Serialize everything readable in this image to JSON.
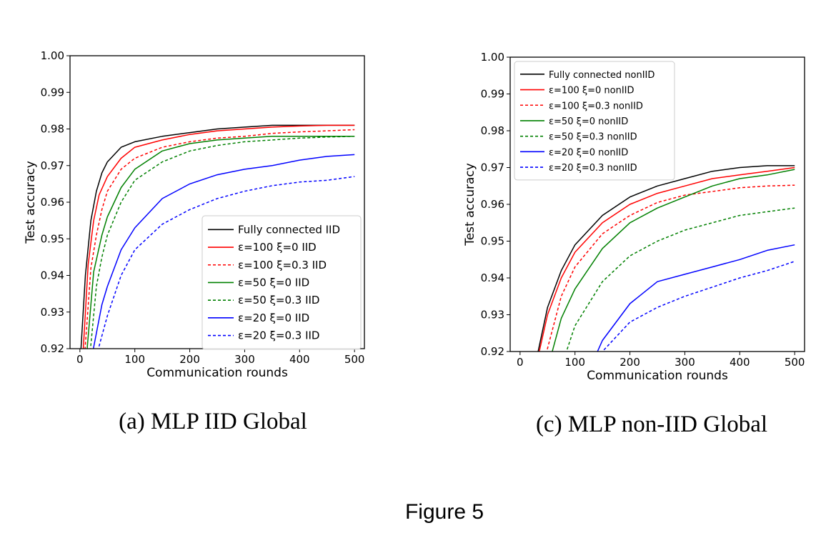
{
  "figure_label": "Figure 5",
  "chart_data": [
    {
      "type": "line",
      "caption": "(a) MLP IID Global",
      "xlabel": "Communication rounds",
      "ylabel": "Test accuracy",
      "xlim": [
        -18,
        518
      ],
      "ylim": [
        0.92,
        1.0
      ],
      "xticks": [
        0,
        100,
        200,
        300,
        400,
        500
      ],
      "yticks": [
        "0.92",
        "0.93",
        "0.94",
        "0.95",
        "0.96",
        "0.97",
        "0.98",
        "0.99",
        "1.00"
      ],
      "legend_position": "lower-right",
      "grid": false,
      "series": [
        {
          "name": "Fully connected IID",
          "color": "#000000",
          "dash": "solid",
          "x": [
            0,
            10,
            20,
            30,
            40,
            50,
            75,
            100,
            150,
            200,
            250,
            300,
            350,
            400,
            450,
            500
          ],
          "y": [
            0.915,
            0.94,
            0.955,
            0.963,
            0.968,
            0.971,
            0.975,
            0.9765,
            0.978,
            0.979,
            0.98,
            0.9805,
            0.981,
            0.981,
            0.981,
            0.981
          ]
        },
        {
          "name": "ε=100 ξ=0 IID",
          "color": "#ff0000",
          "dash": "solid",
          "x": [
            5,
            15,
            25,
            35,
            50,
            75,
            100,
            150,
            200,
            250,
            300,
            350,
            400,
            450,
            500
          ],
          "y": [
            0.917,
            0.943,
            0.955,
            0.962,
            0.967,
            0.972,
            0.975,
            0.977,
            0.9785,
            0.9795,
            0.98,
            0.9805,
            0.9808,
            0.981,
            0.981
          ]
        },
        {
          "name": "ε=100 ξ=0.3 IID",
          "color": "#ff0000",
          "dash": "dashed",
          "x": [
            8,
            20,
            30,
            40,
            50,
            75,
            100,
            150,
            200,
            250,
            300,
            350,
            400,
            450,
            500
          ],
          "y": [
            0.917,
            0.942,
            0.951,
            0.958,
            0.963,
            0.969,
            0.972,
            0.975,
            0.9765,
            0.9775,
            0.978,
            0.9788,
            0.9792,
            0.9795,
            0.9798
          ]
        },
        {
          "name": "ε=50 ξ=0 IID",
          "color": "#008000",
          "dash": "solid",
          "x": [
            12,
            25,
            40,
            50,
            75,
            100,
            150,
            200,
            250,
            300,
            350,
            400,
            450,
            500
          ],
          "y": [
            0.918,
            0.941,
            0.951,
            0.956,
            0.964,
            0.969,
            0.974,
            0.976,
            0.977,
            0.9775,
            0.978,
            0.978,
            0.978,
            0.978
          ]
        },
        {
          "name": "ε=50 ξ=0.3 IID",
          "color": "#008000",
          "dash": "dashed",
          "x": [
            18,
            30,
            40,
            50,
            75,
            100,
            150,
            200,
            250,
            300,
            350,
            400,
            450,
            500
          ],
          "y": [
            0.918,
            0.937,
            0.945,
            0.951,
            0.96,
            0.966,
            0.971,
            0.974,
            0.9755,
            0.9765,
            0.977,
            0.9775,
            0.9778,
            0.978
          ]
        },
        {
          "name": "ε=20 ξ=0 IID",
          "color": "#0000ff",
          "dash": "solid",
          "x": [
            22,
            40,
            50,
            75,
            100,
            150,
            200,
            250,
            300,
            350,
            400,
            450,
            500
          ],
          "y": [
            0.918,
            0.932,
            0.937,
            0.947,
            0.953,
            0.961,
            0.965,
            0.9675,
            0.969,
            0.97,
            0.9715,
            0.9725,
            0.973
          ]
        },
        {
          "name": "ε=20 ξ=0.3 IID",
          "color": "#0000ff",
          "dash": "dashed",
          "x": [
            30,
            50,
            75,
            100,
            150,
            200,
            250,
            300,
            350,
            400,
            450,
            500
          ],
          "y": [
            0.918,
            0.929,
            0.94,
            0.947,
            0.954,
            0.958,
            0.961,
            0.963,
            0.9645,
            0.9655,
            0.966,
            0.967
          ]
        }
      ]
    },
    {
      "type": "line",
      "caption": "(c) MLP non-IID Global",
      "xlabel": "Communication rounds",
      "ylabel": "Test accuracy",
      "xlim": [
        -18,
        518
      ],
      "ylim": [
        0.92,
        1.0
      ],
      "xticks": [
        0,
        100,
        200,
        300,
        400,
        500
      ],
      "yticks": [
        "0.92",
        "0.93",
        "0.94",
        "0.95",
        "0.96",
        "0.97",
        "0.98",
        "0.99",
        "1.00"
      ],
      "legend_position": "upper-left",
      "grid": false,
      "series": [
        {
          "name": "Fully connected nonIID",
          "color": "#000000",
          "dash": "solid",
          "x": [
            30,
            50,
            75,
            100,
            150,
            200,
            250,
            300,
            350,
            400,
            450,
            500
          ],
          "y": [
            0.918,
            0.932,
            0.942,
            0.949,
            0.957,
            0.962,
            0.965,
            0.967,
            0.969,
            0.97,
            0.9705,
            0.9705
          ]
        },
        {
          "name": "ε=100 ξ=0 nonIID",
          "color": "#ff0000",
          "dash": "solid",
          "x": [
            32,
            50,
            75,
            100,
            150,
            200,
            250,
            300,
            350,
            400,
            450,
            500
          ],
          "y": [
            0.918,
            0.93,
            0.94,
            0.947,
            0.955,
            0.96,
            0.963,
            0.965,
            0.967,
            0.968,
            0.969,
            0.97
          ]
        },
        {
          "name": "ε=100 ξ=0.3 nonIID",
          "color": "#ff0000",
          "dash": "dashed",
          "x": [
            45,
            75,
            100,
            150,
            200,
            250,
            300,
            350,
            400,
            450,
            500
          ],
          "y": [
            0.918,
            0.935,
            0.943,
            0.952,
            0.957,
            0.9605,
            0.9625,
            0.9635,
            0.9645,
            0.965,
            0.9652
          ]
        },
        {
          "name": "ε=50 ξ=0 nonIID",
          "color": "#008000",
          "dash": "solid",
          "x": [
            55,
            75,
            100,
            150,
            200,
            250,
            300,
            350,
            400,
            450,
            500
          ],
          "y": [
            0.918,
            0.929,
            0.937,
            0.948,
            0.955,
            0.959,
            0.962,
            0.965,
            0.967,
            0.968,
            0.9695
          ]
        },
        {
          "name": "ε=50 ξ=0.3 nonIID",
          "color": "#008000",
          "dash": "dashed",
          "x": [
            80,
            100,
            150,
            200,
            250,
            300,
            350,
            400,
            450,
            500
          ],
          "y": [
            0.918,
            0.927,
            0.939,
            0.946,
            0.95,
            0.953,
            0.955,
            0.957,
            0.958,
            0.959
          ]
        },
        {
          "name": "ε=20 ξ=0 nonIID",
          "color": "#0000ff",
          "dash": "solid",
          "x": [
            135,
            150,
            200,
            250,
            300,
            350,
            400,
            450,
            500
          ],
          "y": [
            0.918,
            0.923,
            0.933,
            0.939,
            0.941,
            0.943,
            0.945,
            0.9475,
            0.949
          ]
        },
        {
          "name": "ε=20 ξ=0.3 nonIID",
          "color": "#0000ff",
          "dash": "dashed",
          "x": [
            145,
            150,
            200,
            250,
            300,
            350,
            400,
            450,
            500
          ],
          "y": [
            0.918,
            0.92,
            0.928,
            0.932,
            0.935,
            0.9375,
            0.94,
            0.942,
            0.9445
          ]
        }
      ]
    }
  ]
}
